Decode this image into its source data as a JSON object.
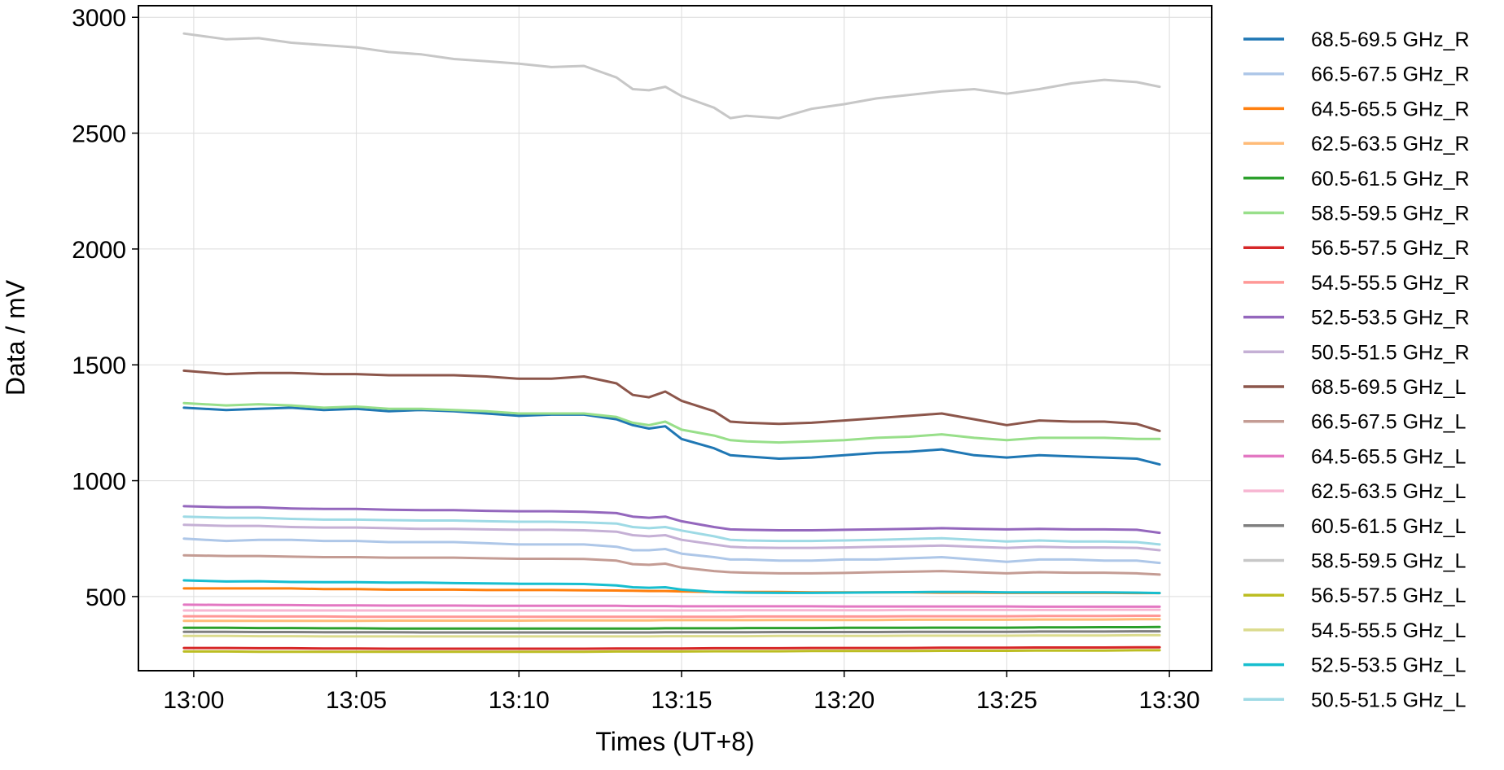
{
  "chart_data": {
    "type": "line",
    "xlabel": "Times (UT+8)",
    "ylabel": "Data / mV",
    "x_ticks": [
      "13:00",
      "13:05",
      "13:10",
      "13:15",
      "13:20",
      "13:25",
      "13:30"
    ],
    "x_tick_minutes": [
      0,
      5,
      10,
      15,
      20,
      25,
      30
    ],
    "xlim_minutes": [
      -1.7,
      31.3
    ],
    "y_ticks": [
      "3000",
      "2500",
      "2000",
      "1500",
      "1000",
      "500"
    ],
    "y_tick_values": [
      3000,
      2500,
      2000,
      1500,
      1000,
      500
    ],
    "ylim": [
      180,
      3050
    ],
    "grid": true,
    "legend_position": "outside-right",
    "x_minutes": [
      -0.3,
      1,
      2,
      3,
      4,
      5,
      6,
      7,
      8,
      9,
      10,
      11,
      12,
      13,
      13.5,
      14,
      14.5,
      15,
      16,
      16.5,
      17,
      18,
      19,
      20,
      21,
      22,
      23,
      24,
      25,
      26,
      27,
      28,
      29,
      29.7
    ],
    "series": [
      {
        "name": "68.5-69.5 GHz_R",
        "color": "#1f77b4",
        "values": [
          1315,
          1305,
          1310,
          1315,
          1305,
          1310,
          1300,
          1305,
          1300,
          1290,
          1280,
          1285,
          1285,
          1265,
          1240,
          1225,
          1235,
          1180,
          1140,
          1110,
          1105,
          1095,
          1100,
          1110,
          1120,
          1125,
          1135,
          1110,
          1100,
          1110,
          1105,
          1100,
          1095,
          1070
        ]
      },
      {
        "name": "66.5-67.5 GHz_R",
        "color": "#aec7e8",
        "values": [
          750,
          740,
          745,
          745,
          740,
          740,
          735,
          735,
          735,
          730,
          725,
          725,
          725,
          715,
          700,
          700,
          705,
          685,
          670,
          660,
          660,
          655,
          655,
          660,
          660,
          665,
          670,
          660,
          650,
          660,
          660,
          655,
          655,
          645
        ]
      },
      {
        "name": "64.5-65.5 GHz_R",
        "color": "#ff7f0e",
        "values": [
          535,
          535,
          535,
          535,
          532,
          532,
          530,
          530,
          530,
          528,
          528,
          528,
          527,
          526,
          525,
          524,
          524,
          522,
          520,
          520,
          520,
          520,
          518,
          518,
          518,
          518,
          517,
          517,
          516,
          516,
          516,
          516,
          515,
          515
        ]
      },
      {
        "name": "62.5-63.5 GHz_R",
        "color": "#ffbb78",
        "values": [
          395,
          395,
          395,
          395,
          395,
          395,
          396,
          396,
          396,
          396,
          396,
          397,
          397,
          397,
          397,
          397,
          398,
          398,
          398,
          398,
          398,
          399,
          399,
          399,
          399,
          400,
          400,
          400,
          400,
          401,
          401,
          401,
          402,
          402
        ]
      },
      {
        "name": "60.5-61.5 GHz_R",
        "color": "#2ca02c",
        "values": [
          365,
          365,
          364,
          364,
          363,
          363,
          362,
          362,
          362,
          362,
          362,
          362,
          362,
          362,
          362,
          362,
          363,
          363,
          363,
          363,
          364,
          364,
          364,
          365,
          365,
          365,
          366,
          366,
          366,
          367,
          367,
          368,
          368,
          369
        ]
      },
      {
        "name": "58.5-59.5 GHz_R",
        "color": "#98df8a",
        "values": [
          1335,
          1325,
          1330,
          1325,
          1315,
          1320,
          1310,
          1310,
          1305,
          1300,
          1290,
          1290,
          1290,
          1275,
          1250,
          1240,
          1255,
          1220,
          1195,
          1175,
          1170,
          1165,
          1170,
          1175,
          1185,
          1190,
          1200,
          1185,
          1175,
          1185,
          1185,
          1185,
          1180,
          1180
        ]
      },
      {
        "name": "56.5-57.5 GHz_R",
        "color": "#d62728",
        "values": [
          278,
          278,
          277,
          277,
          276,
          276,
          275,
          275,
          275,
          275,
          275,
          275,
          275,
          276,
          276,
          276,
          276,
          276,
          277,
          277,
          277,
          277,
          278,
          278,
          278,
          278,
          279,
          279,
          279,
          280,
          280,
          280,
          281,
          281
        ]
      },
      {
        "name": "54.5-55.5 GHz_R",
        "color": "#ff9896",
        "values": [
          415,
          415,
          414,
          414,
          414,
          413,
          413,
          413,
          413,
          413,
          413,
          413,
          413,
          413,
          413,
          413,
          413,
          413,
          413,
          413,
          414,
          414,
          414,
          414,
          414,
          415,
          415,
          415,
          415,
          416,
          416,
          416,
          417,
          417
        ]
      },
      {
        "name": "52.5-53.5 GHz_R",
        "color": "#9467bd",
        "values": [
          890,
          885,
          885,
          880,
          878,
          878,
          875,
          873,
          873,
          870,
          868,
          868,
          866,
          860,
          845,
          840,
          845,
          825,
          800,
          790,
          788,
          786,
          786,
          788,
          790,
          792,
          795,
          792,
          790,
          792,
          790,
          790,
          788,
          775
        ]
      },
      {
        "name": "50.5-51.5 GHz_R",
        "color": "#c5b0d5",
        "values": [
          810,
          805,
          805,
          800,
          798,
          798,
          795,
          792,
          792,
          790,
          788,
          788,
          786,
          780,
          765,
          760,
          765,
          745,
          725,
          715,
          712,
          710,
          710,
          712,
          715,
          717,
          720,
          715,
          710,
          715,
          712,
          712,
          710,
          700
        ]
      },
      {
        "name": "68.5-69.5 GHz_L",
        "color": "#8c564b",
        "values": [
          1475,
          1460,
          1465,
          1465,
          1460,
          1460,
          1455,
          1455,
          1455,
          1450,
          1440,
          1440,
          1450,
          1420,
          1370,
          1360,
          1385,
          1345,
          1300,
          1255,
          1250,
          1245,
          1250,
          1260,
          1270,
          1280,
          1290,
          1265,
          1240,
          1260,
          1255,
          1255,
          1245,
          1215
        ]
      },
      {
        "name": "66.5-67.5 GHz_L",
        "color": "#c49c94",
        "values": [
          678,
          675,
          675,
          672,
          670,
          670,
          668,
          668,
          668,
          665,
          663,
          663,
          662,
          655,
          640,
          637,
          642,
          625,
          610,
          605,
          603,
          600,
          600,
          602,
          605,
          607,
          610,
          605,
          600,
          605,
          603,
          603,
          600,
          595
        ]
      },
      {
        "name": "64.5-65.5 GHz_L",
        "color": "#e377c2",
        "values": [
          465,
          464,
          464,
          463,
          462,
          462,
          461,
          461,
          461,
          460,
          460,
          460,
          460,
          460,
          459,
          459,
          459,
          458,
          458,
          458,
          458,
          458,
          458,
          457,
          457,
          457,
          457,
          457,
          457,
          456,
          456,
          456,
          456,
          456
        ]
      },
      {
        "name": "62.5-63.5 GHz_L",
        "color": "#f7b6d2",
        "values": [
          440,
          440,
          440,
          440,
          440,
          440,
          440,
          440,
          440,
          440,
          440,
          440,
          440,
          440,
          440,
          440,
          440,
          440,
          440,
          441,
          441,
          441,
          441,
          441,
          441,
          442,
          442,
          442,
          442,
          442,
          442,
          443,
          443,
          443
        ]
      },
      {
        "name": "60.5-61.5 GHz_L",
        "color": "#7f7f7f",
        "values": [
          348,
          348,
          347,
          347,
          346,
          346,
          346,
          345,
          345,
          345,
          345,
          345,
          345,
          345,
          345,
          345,
          346,
          346,
          346,
          346,
          346,
          347,
          347,
          347,
          347,
          348,
          348,
          348,
          348,
          349,
          349,
          349,
          350,
          350
        ]
      },
      {
        "name": "58.5-59.5 GHz_L",
        "color": "#c7c7c7",
        "values": [
          2930,
          2905,
          2910,
          2890,
          2880,
          2870,
          2850,
          2840,
          2820,
          2810,
          2800,
          2785,
          2790,
          2740,
          2690,
          2685,
          2700,
          2660,
          2610,
          2565,
          2575,
          2565,
          2605,
          2625,
          2650,
          2665,
          2680,
          2690,
          2670,
          2690,
          2715,
          2730,
          2720,
          2700
        ]
      },
      {
        "name": "56.5-57.5 GHz_L",
        "color": "#bcbd22",
        "values": [
          263,
          263,
          262,
          262,
          262,
          262,
          262,
          262,
          262,
          262,
          262,
          262,
          262,
          263,
          263,
          263,
          263,
          263,
          264,
          264,
          264,
          264,
          265,
          265,
          265,
          265,
          266,
          266,
          266,
          267,
          267,
          267,
          268,
          268
        ]
      },
      {
        "name": "54.5-55.5 GHz_L",
        "color": "#dbdb8d",
        "values": [
          330,
          330,
          329,
          329,
          328,
          328,
          328,
          328,
          328,
          328,
          328,
          328,
          328,
          328,
          328,
          328,
          329,
          329,
          329,
          329,
          329,
          330,
          330,
          330,
          330,
          331,
          331,
          331,
          331,
          332,
          332,
          332,
          333,
          333
        ]
      },
      {
        "name": "52.5-53.5 GHz_L",
        "color": "#17becf",
        "values": [
          570,
          565,
          566,
          563,
          562,
          562,
          560,
          560,
          558,
          557,
          555,
          555,
          554,
          548,
          540,
          538,
          540,
          530,
          520,
          518,
          517,
          516,
          516,
          517,
          518,
          519,
          520,
          520,
          518,
          518,
          518,
          518,
          517,
          515
        ]
      },
      {
        "name": "50.5-51.5 GHz_L",
        "color": "#9edae5",
        "values": [
          845,
          840,
          840,
          835,
          832,
          832,
          830,
          828,
          828,
          825,
          823,
          823,
          820,
          815,
          800,
          795,
          800,
          785,
          760,
          745,
          742,
          740,
          740,
          742,
          745,
          748,
          752,
          745,
          738,
          742,
          738,
          738,
          735,
          725
        ]
      }
    ]
  }
}
